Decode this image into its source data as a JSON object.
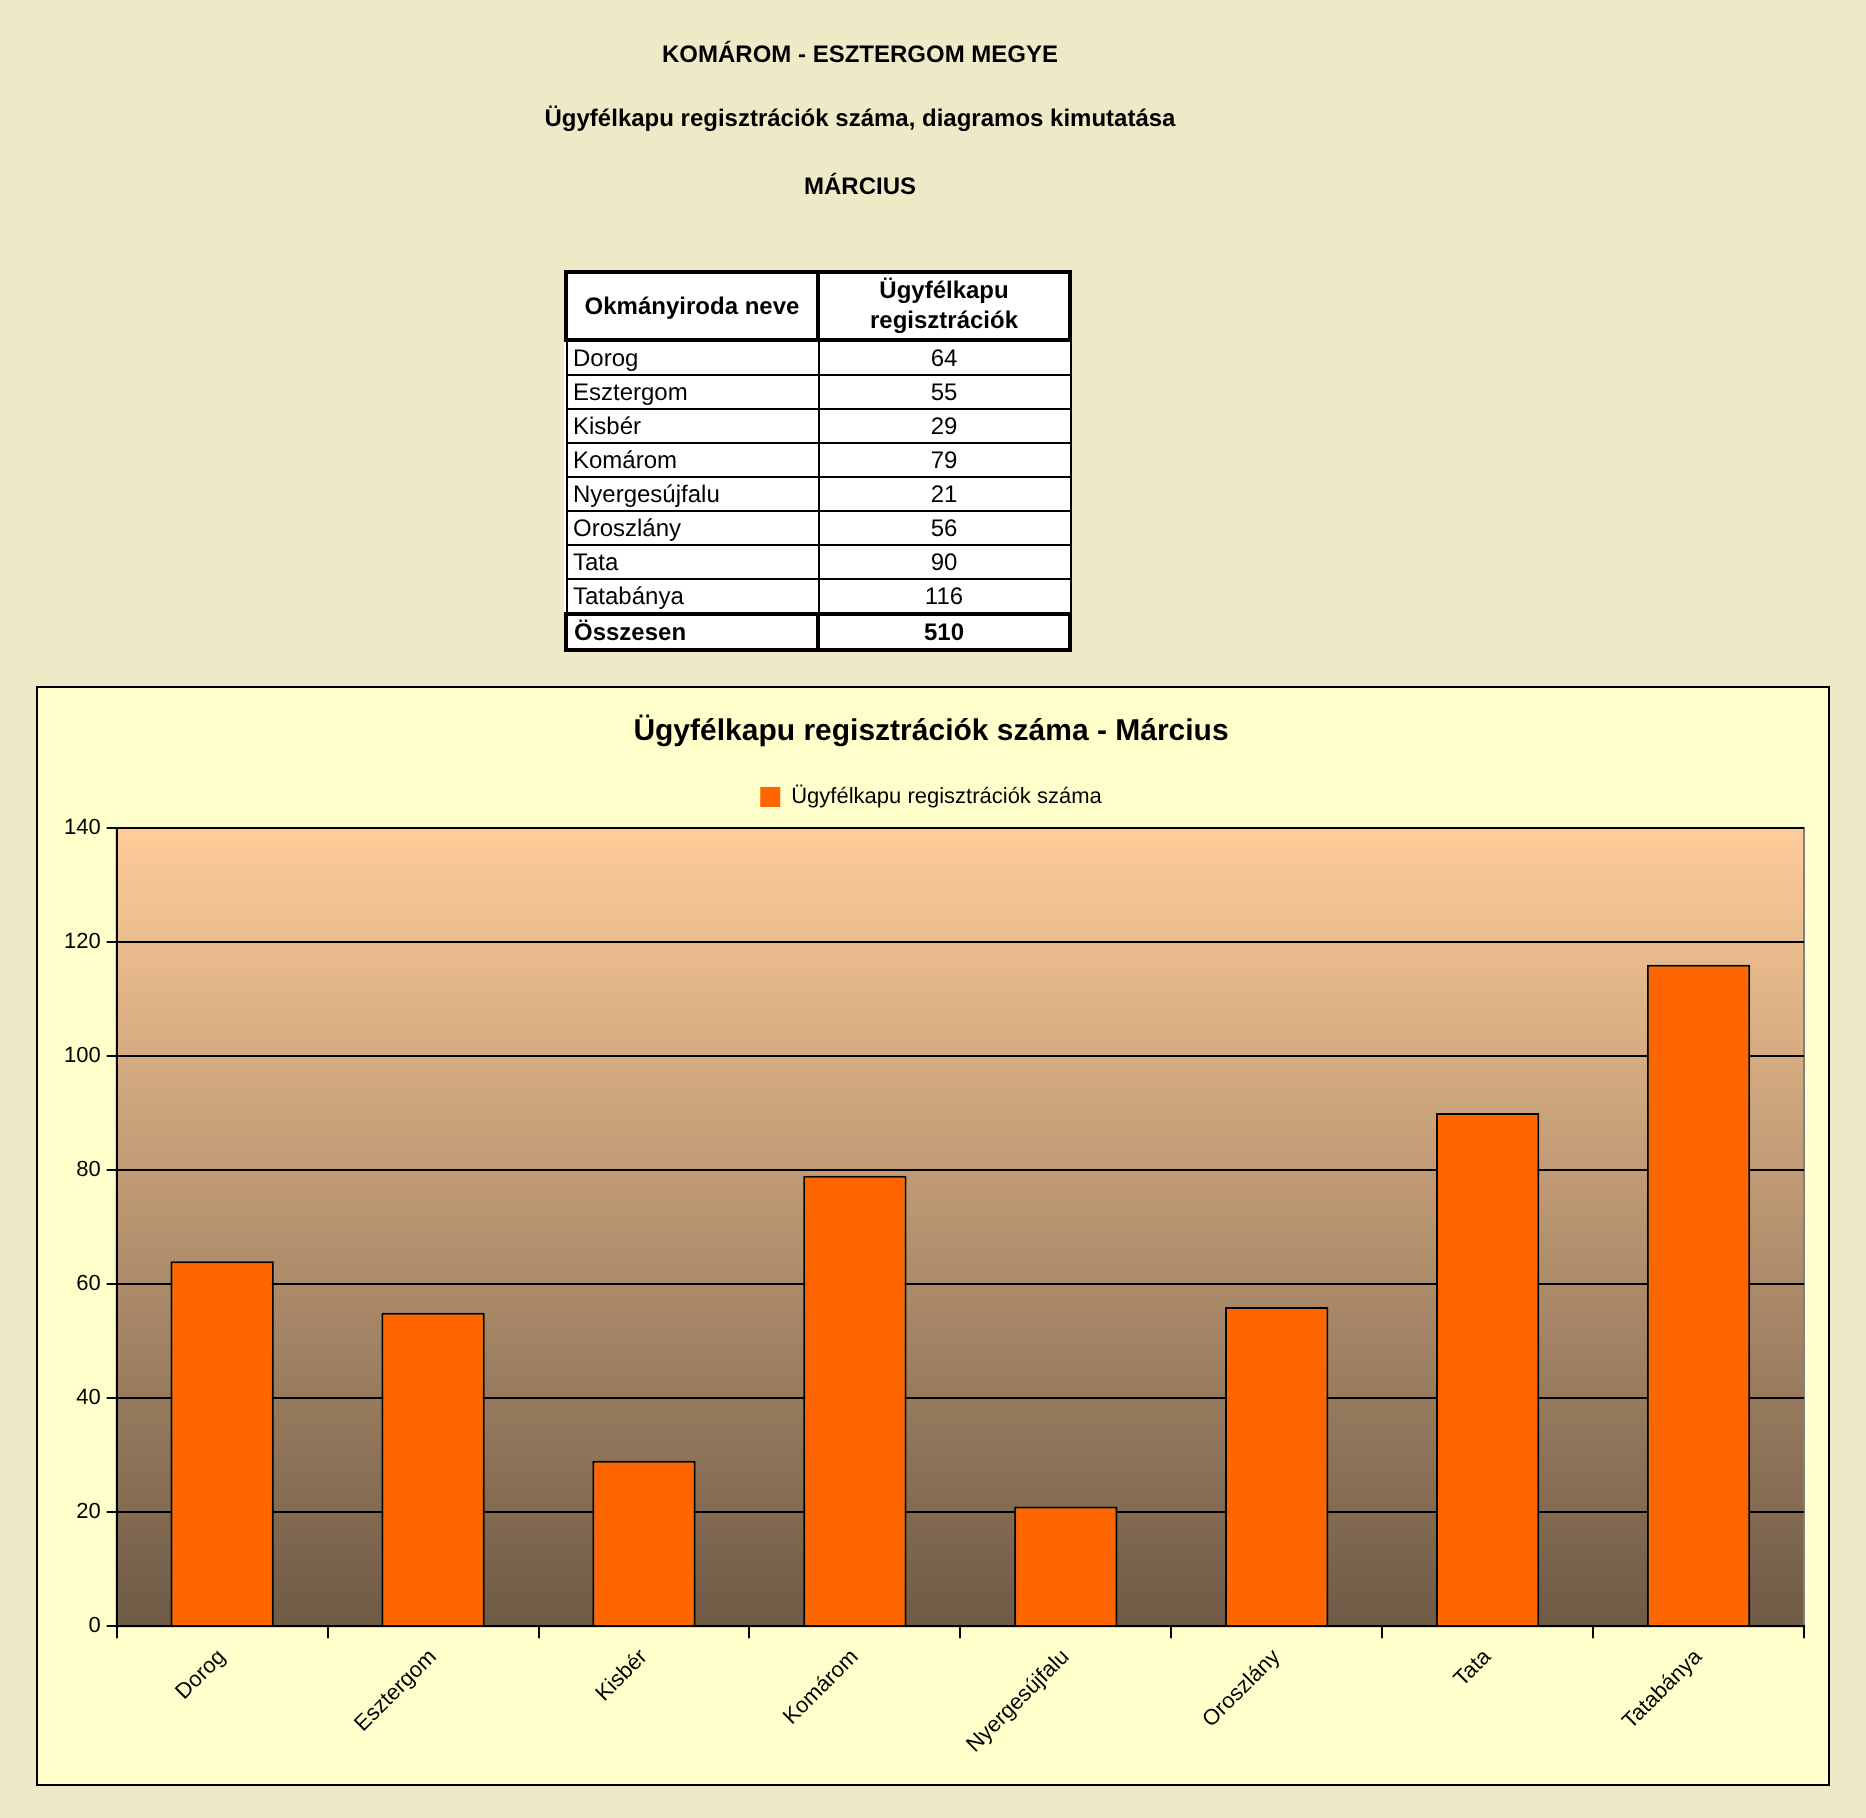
{
  "chart_data": [
    {
      "type": "other",
      "annotations": [
        "KOMÁROM - ESZTERGOM MEGYE",
        "Ügyfélkapu regisztrációk száma, diagramos kimutatása",
        "MÁRCIUS",
        "Okmányiroda neve",
        "Ügyfélkapu regisztrációk",
        "Dorog",
        "64",
        "Esztergom",
        "55",
        "Kisbér",
        "29",
        "Komárom",
        "79",
        "Nyergesújfalu",
        "21",
        "Oroszlány",
        "56",
        "Tata",
        "90",
        "Tatabánya",
        "116",
        "Összesen",
        "510"
      ]
    },
    {
      "type": "bar",
      "title": "Ügyfélkapu regisztrációk száma - Március",
      "categories": [
        "Dorog",
        "Esztergom",
        "Kisbér",
        "Komárom",
        "Nyergesújfalu",
        "Oroszlány",
        "Tata",
        "Tatabánya"
      ],
      "series": [
        {
          "name": "Ügyfélkapu regisztrációk száma",
          "color": "#ff6600",
          "values": [
            64,
            55,
            29,
            79,
            21,
            56,
            90,
            116
          ]
        }
      ],
      "ylim": [
        0,
        140
      ],
      "yticks": [
        0,
        20,
        40,
        60,
        80,
        100,
        120,
        140
      ],
      "grid": "y",
      "legend": "top"
    }
  ]
}
